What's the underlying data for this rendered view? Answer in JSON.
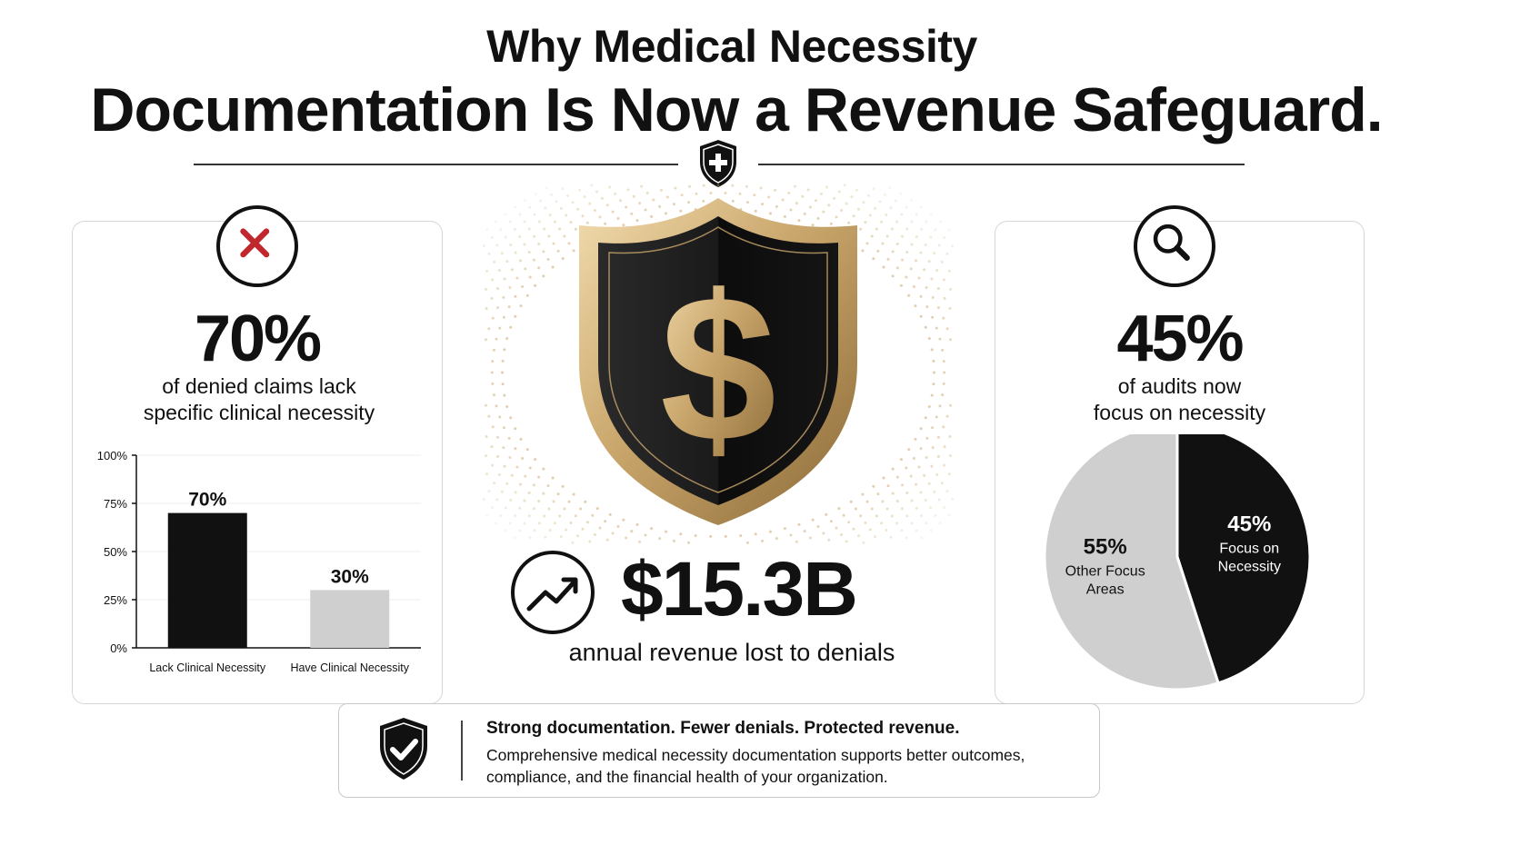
{
  "header": {
    "title_line1": "Why Medical Necessity",
    "title_line2": "Documentation Is Now a Revenue Safeguard."
  },
  "left_card": {
    "icon": "x-mark-icon",
    "percent": "70%",
    "caption_line1": "of denied claims lack",
    "caption_line2": "specific clinical necessity"
  },
  "center": {
    "shield_symbol": "$",
    "icon": "trending-up-icon",
    "amount": "$15.3B",
    "caption": "annual revenue lost to denials"
  },
  "right_card": {
    "icon": "magnifier-icon",
    "percent": "45%",
    "caption_line1": "of audits now",
    "caption_line2": "focus on necessity"
  },
  "banner": {
    "icon": "shield-check-icon",
    "headline": "Strong documentation. Fewer denials. Protected revenue.",
    "body": "Comprehensive medical necessity documentation supports better outcomes, compliance, and the financial health of your organization."
  },
  "colors": {
    "gold": "#c9a66b",
    "dark": "#111111",
    "light_gray": "#cfcfcf",
    "red": "#c0282d"
  },
  "chart_data": [
    {
      "type": "bar",
      "categories": [
        "Lack Clinical Necessity",
        "Have Clinical Necessity"
      ],
      "values": [
        70,
        30
      ],
      "data_labels": [
        "70%",
        "30%"
      ],
      "bar_colors": [
        "#111111",
        "#cfcfcf"
      ],
      "ylim": [
        0,
        100
      ],
      "yticks": [
        "0%",
        "25%",
        "50%",
        "75%",
        "100%"
      ],
      "grid": true
    },
    {
      "type": "pie",
      "slices": [
        {
          "value": 45,
          "label_pct": "45%",
          "label_line1": "Focus on",
          "label_line2": "Necessity",
          "color": "#111111"
        },
        {
          "value": 55,
          "label_pct": "55%",
          "label_line1": "Other Focus",
          "label_line2": "Areas",
          "color": "#cfcfcf"
        }
      ]
    }
  ]
}
